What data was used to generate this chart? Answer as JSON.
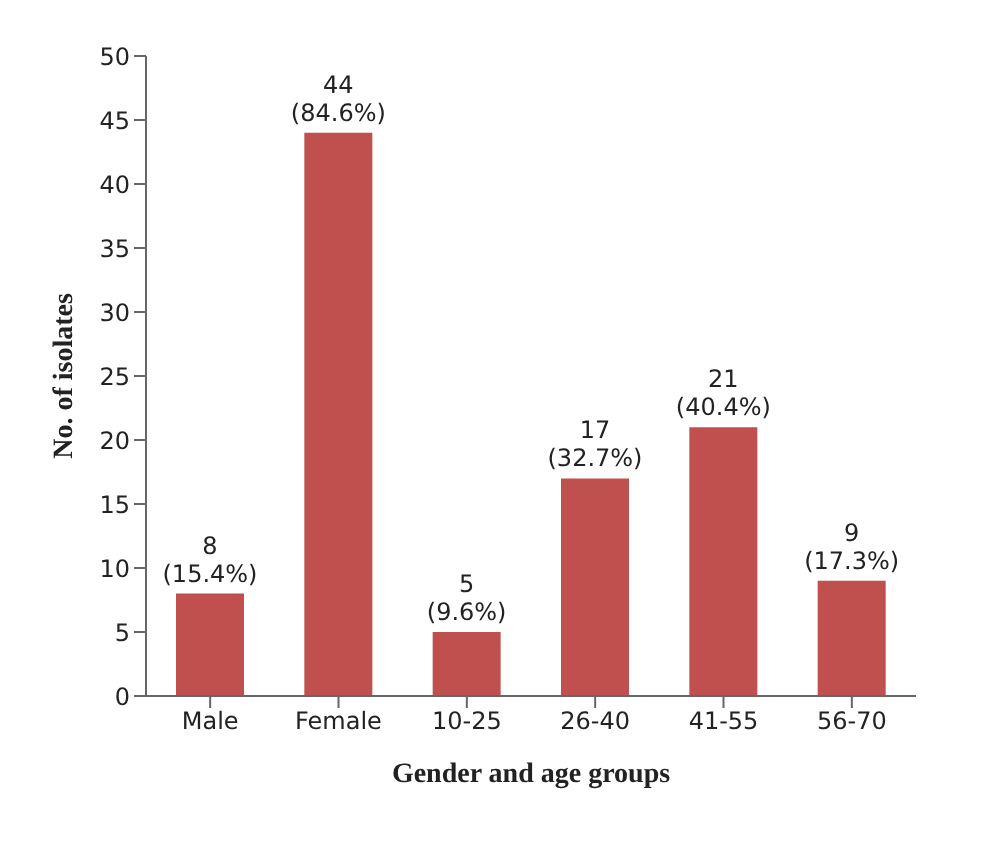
{
  "chart_data": {
    "type": "bar",
    "xlabel": "Gender and age groups",
    "ylabel": "No. of isolates",
    "categories": [
      "Male",
      "Female",
      "10-25",
      "26-40",
      "41-55",
      "56-70"
    ],
    "values": [
      8,
      44,
      5,
      17,
      21,
      9
    ],
    "value_labels": [
      "8 (15.4%)",
      "44 (84.6%)",
      "5 (9.6%)",
      "17 (32.7%)",
      "21 (40.4%)",
      "9 (17.3%)"
    ],
    "color": "#c0504d",
    "ylim": [
      0,
      50
    ],
    "yticks": [
      0,
      5,
      10,
      15,
      20,
      25,
      30,
      35,
      40,
      45,
      50
    ],
    "grid": false
  }
}
